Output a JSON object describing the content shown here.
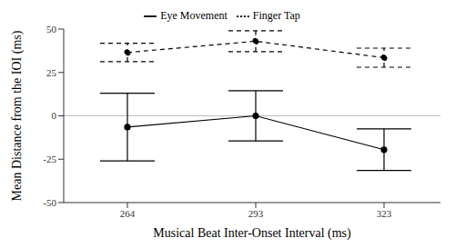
{
  "chart_data": {
    "type": "line",
    "x_label": "Musical Beat Inter-Onset Interval (ms)",
    "y_label": "Mean Distance from the IOI (ms)",
    "categories": [
      "264",
      "293",
      "323"
    ],
    "series": [
      {
        "name": "Eye Movement",
        "color": "#000000",
        "line_style": "solid",
        "marker": "circle",
        "values": [
          -6.5,
          0,
          -19.5
        ],
        "errors": [
          19.5,
          14.5,
          12
        ]
      },
      {
        "name": "Finger Tap",
        "color": "#000000",
        "line_style": "dashed",
        "marker": "circle",
        "values": [
          36.5,
          43,
          33.5
        ],
        "errors": [
          5.3,
          6,
          5.5
        ]
      }
    ],
    "ylim": [
      -50,
      50
    ],
    "yticks": [
      -50,
      -25,
      0,
      25,
      50
    ],
    "reference_line": 0,
    "grid": false,
    "legend": "top"
  }
}
